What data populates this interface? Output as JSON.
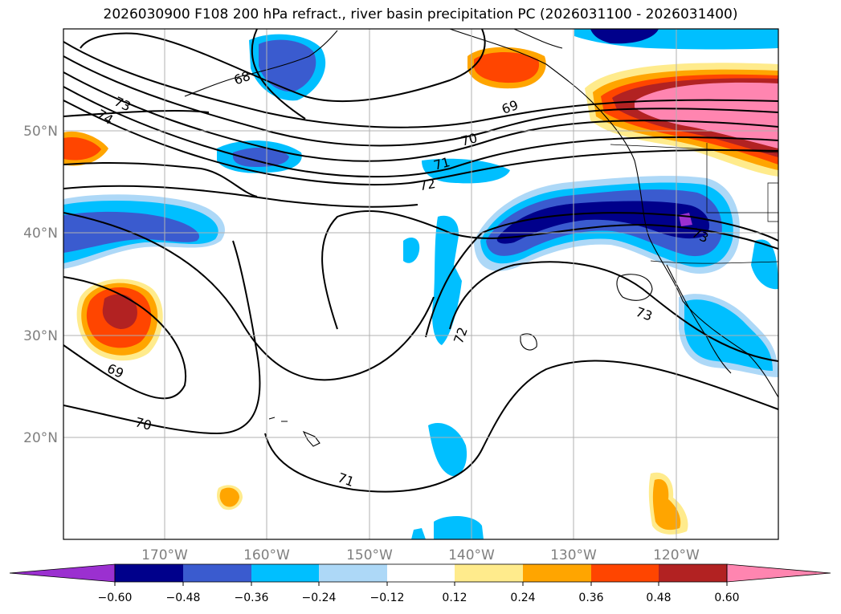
{
  "title": "2026030900 F108 200 hPa refract., river basin precipitation PC (2026031100 - 2026031400)",
  "map": {
    "longitude_labels": [
      "170°W",
      "160°W",
      "150°W",
      "140°W",
      "130°W",
      "120°W"
    ],
    "latitude_labels": [
      "50°N",
      "40°N",
      "30°N",
      "20°N"
    ],
    "contour_labels": [
      "68",
      "73",
      "74",
      "69",
      "70",
      "71",
      "72",
      "73",
      "69",
      "70",
      "71",
      "72",
      "73"
    ]
  },
  "colorbar": {
    "tick_labels": [
      "−0.60",
      "−0.48",
      "−0.36",
      "−0.24",
      "−0.12",
      "0.12",
      "0.24",
      "0.36",
      "0.48",
      "0.60"
    ],
    "colors": {
      "below_-0.60": "#9b30d0",
      "-0.60_-0.48": "#00008b",
      "-0.48_-0.36": "#3a5bcf",
      "-0.36_-0.24": "#00bfff",
      "-0.24_-0.12": "#add8f7",
      "-0.12_0.12": "#ffffff",
      "0.12_0.24": "#ffeb8c",
      "0.24_0.36": "#ffa500",
      "0.36_0.48": "#ff4500",
      "0.48_0.60": "#b22222",
      "above_0.60": "#ff85b0"
    }
  }
}
